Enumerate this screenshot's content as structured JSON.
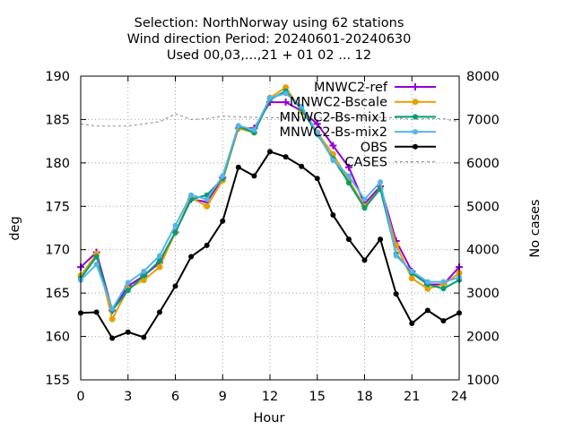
{
  "chart_data": {
    "type": "line",
    "title_lines": [
      "Selection: NorthNorway using    62 stations",
      "Wind direction   Period: 20240601-20240630",
      "Used 00,03,...,21 + 01 02 ... 12"
    ],
    "xlabel": "Hour",
    "ylabel": "deg",
    "y2label": "No cases",
    "xlim": [
      0,
      24
    ],
    "ylim": [
      155,
      190
    ],
    "y2lim": [
      1000,
      8000
    ],
    "xticks": [
      "0",
      "3",
      "6",
      "9",
      "12",
      "15",
      "18",
      "21",
      "24"
    ],
    "yticks": [
      "155",
      "160",
      "165",
      "170",
      "175",
      "180",
      "185",
      "190"
    ],
    "y2ticks": [
      "1000",
      "2000",
      "3000",
      "4000",
      "5000",
      "6000",
      "7000",
      "8000"
    ],
    "grid": true,
    "legend_position": "top-right",
    "x": [
      0,
      1,
      2,
      3,
      4,
      5,
      6,
      7,
      8,
      9,
      10,
      11,
      12,
      13,
      14,
      15,
      16,
      17,
      18,
      19,
      20,
      21,
      22,
      23,
      24
    ],
    "series": [
      {
        "name": "MNWC2-ref",
        "color": "#9400d3",
        "marker": "plus",
        "axis": "y",
        "values": [
          168,
          169.7,
          163,
          165.8,
          167,
          168.5,
          172,
          175.8,
          175.5,
          178.3,
          184,
          184,
          187,
          187,
          186,
          184.5,
          182,
          179.5,
          175.3,
          177.3,
          171,
          167.5,
          166,
          166,
          168
        ]
      },
      {
        "name": "MNWC2-Bscale",
        "color": "#e69f00",
        "marker": "circle",
        "axis": "y",
        "values": [
          167,
          169.5,
          162,
          165.5,
          166.5,
          168,
          172,
          176,
          175,
          178,
          184,
          183.5,
          187.5,
          188.7,
          186,
          183.5,
          181,
          178,
          175,
          177,
          170.5,
          166.7,
          165.5,
          166,
          167.3
        ]
      },
      {
        "name": "MNWC2-Bs-mix1",
        "color": "#009e73",
        "marker": "dot",
        "axis": "y",
        "values": [
          166.7,
          169.2,
          163,
          165.3,
          167,
          168.7,
          172,
          175.8,
          176.3,
          178.2,
          184.2,
          183.5,
          187.3,
          188.3,
          186.2,
          183.3,
          180.5,
          177.7,
          174.8,
          177,
          169.5,
          167.3,
          166,
          165.5,
          166.5
        ]
      },
      {
        "name": "MNWC2-Bs-mix2",
        "color": "#56b4e9",
        "marker": "dot",
        "axis": "y",
        "values": [
          166.5,
          168.3,
          163.2,
          166.2,
          167.5,
          169.3,
          172.8,
          176.3,
          175.8,
          178.5,
          184.3,
          183.8,
          187.5,
          188,
          186.5,
          183.5,
          180.3,
          178.5,
          175.8,
          177.8,
          169.3,
          167.5,
          166.3,
          166.3,
          166.8
        ]
      },
      {
        "name": "OBS",
        "color": "#000000",
        "marker": "dot",
        "axis": "y",
        "values": [
          162.7,
          162.8,
          159.8,
          160.5,
          159.9,
          162.8,
          165.8,
          169.2,
          170.5,
          173.3,
          179.5,
          178.5,
          181.3,
          180.7,
          179.6,
          178.2,
          174,
          171.2,
          168.8,
          171.2,
          164.9,
          161.5,
          163,
          161.8,
          162.7
        ]
      },
      {
        "name": "CASES",
        "color": "#999999",
        "marker": "none",
        "dashed": true,
        "axis": "y2",
        "values": [
          6900,
          6850,
          6850,
          6850,
          6900,
          6950,
          7130,
          7000,
          7020,
          7080,
          7060,
          7050,
          7040,
          7050,
          7050,
          7040,
          7030,
          7040,
          7040,
          7050,
          7040,
          7000,
          7020,
          7020,
          6950
        ]
      }
    ]
  }
}
